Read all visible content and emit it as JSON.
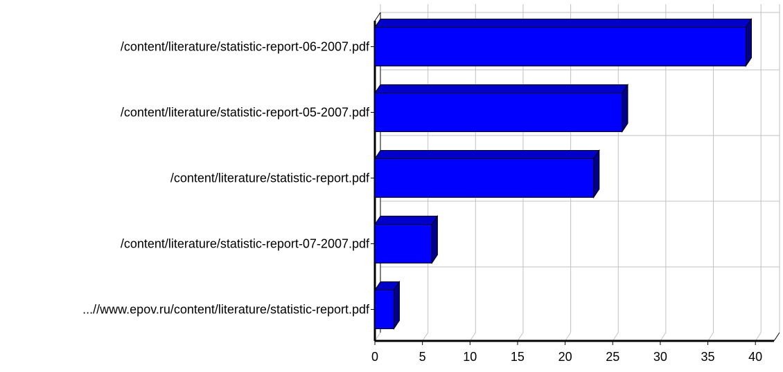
{
  "chart_data": {
    "type": "bar",
    "orientation": "horizontal",
    "categories": [
      "/content/literature/statistic-report-06-2007.pdf",
      "/content/literature/statistic-report-05-2007.pdf",
      "/content/literature/statistic-report.pdf",
      "/content/literature/statistic-report-07-2007.pdf",
      "...//www.epov.ru/content/literature/statistic-report.pdf"
    ],
    "values": [
      39,
      26,
      23,
      6,
      2
    ],
    "xlim": [
      0,
      42
    ],
    "xticks": [
      "0",
      "5",
      "10",
      "15",
      "20",
      "25",
      "30",
      "35",
      "40"
    ],
    "title": "",
    "xlabel": "",
    "ylabel": "",
    "grid": true,
    "style": "3d",
    "colors": {
      "bar_front": "#0000ff",
      "bar_top": "#0000cc",
      "bar_side": "#00008b",
      "grid": "#c0c0c0",
      "axis": "#000000"
    }
  }
}
